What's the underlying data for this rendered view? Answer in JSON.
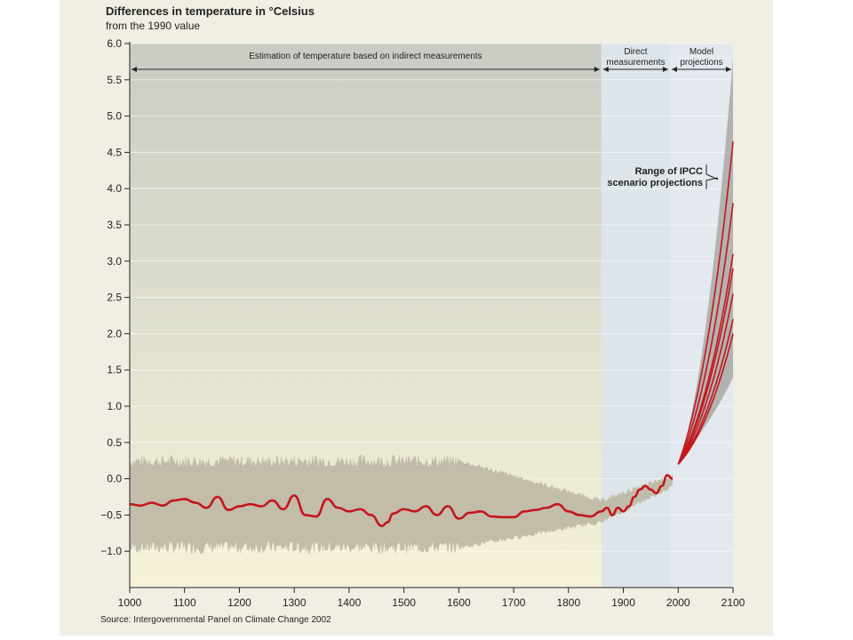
{
  "chart_data": {
    "type": "line",
    "title": "Differences in temperature in °Celsius",
    "subtitle": "from the 1990 value",
    "source": "Source: Intergovernmental Panel on Climate Change 2002",
    "xlim": [
      1000,
      2100
    ],
    "ylim": [
      -1.5,
      6.0
    ],
    "x_ticks": [
      "1000",
      "1100",
      "1200",
      "1300",
      "1400",
      "1500",
      "1600",
      "1700",
      "1800",
      "1900",
      "2000",
      "2100"
    ],
    "y_ticks": [
      "6.0",
      "5.5",
      "5.0",
      "4.5",
      "4.0",
      "3.5",
      "3.0",
      "2.5",
      "2.0",
      "1.5",
      "1.0",
      "0.5",
      "0.0",
      "−0.5",
      "−1.0"
    ],
    "regions": [
      {
        "label_lines": [
          "Estimation of temperature based on indirect measurements"
        ],
        "x_start": 1000,
        "x_end": 1860
      },
      {
        "label_lines": [
          "Direct",
          "measurements"
        ],
        "x_start": 1860,
        "x_end": 1985
      },
      {
        "label_lines": [
          "Model",
          "projections"
        ],
        "x_start": 1985,
        "x_end": 2100
      }
    ],
    "annotation_lines": [
      "Range of IPCC",
      "scenario projections"
    ],
    "series": [
      {
        "role": "observed-smoothed",
        "x": [
          1000,
          1020,
          1040,
          1060,
          1080,
          1100,
          1120,
          1140,
          1160,
          1180,
          1200,
          1220,
          1240,
          1260,
          1280,
          1300,
          1320,
          1340,
          1360,
          1380,
          1400,
          1420,
          1440,
          1460,
          1470,
          1480,
          1500,
          1520,
          1540,
          1560,
          1580,
          1600,
          1620,
          1640,
          1660,
          1680,
          1700,
          1720,
          1740,
          1760,
          1780,
          1800,
          1820,
          1840,
          1860,
          1870,
          1880,
          1890,
          1900,
          1910,
          1920,
          1930,
          1940,
          1950,
          1960,
          1970,
          1980,
          1990
        ],
        "values": [
          -0.35,
          -0.37,
          -0.33,
          -0.37,
          -0.3,
          -0.28,
          -0.33,
          -0.4,
          -0.25,
          -0.43,
          -0.38,
          -0.35,
          -0.38,
          -0.3,
          -0.42,
          -0.23,
          -0.5,
          -0.52,
          -0.28,
          -0.4,
          -0.45,
          -0.42,
          -0.5,
          -0.65,
          -0.6,
          -0.48,
          -0.42,
          -0.45,
          -0.38,
          -0.5,
          -0.38,
          -0.55,
          -0.47,
          -0.45,
          -0.52,
          -0.53,
          -0.53,
          -0.45,
          -0.43,
          -0.4,
          -0.35,
          -0.45,
          -0.5,
          -0.52,
          -0.45,
          -0.4,
          -0.5,
          -0.4,
          -0.45,
          -0.38,
          -0.25,
          -0.15,
          -0.1,
          -0.15,
          -0.2,
          -0.1,
          0.05,
          0.0
        ]
      },
      {
        "role": "projection",
        "x": [
          2000,
          2100
        ],
        "values": [
          0.2,
          4.65
        ]
      },
      {
        "role": "projection",
        "x": [
          2000,
          2100
        ],
        "values": [
          0.2,
          3.8
        ]
      },
      {
        "role": "projection",
        "x": [
          2000,
          2100
        ],
        "values": [
          0.2,
          3.1
        ]
      },
      {
        "role": "projection",
        "x": [
          2000,
          2100
        ],
        "values": [
          0.2,
          2.9
        ]
      },
      {
        "role": "projection",
        "x": [
          2000,
          2100
        ],
        "values": [
          0.2,
          2.55
        ]
      },
      {
        "role": "projection",
        "x": [
          2000,
          2100
        ],
        "values": [
          0.2,
          2.2
        ]
      },
      {
        "role": "projection",
        "x": [
          2000,
          2100
        ],
        "values": [
          0.2,
          2.0
        ]
      }
    ],
    "projection_range": {
      "x": [
        2000,
        2100
      ],
      "low": [
        0.2,
        1.4
      ],
      "high": [
        0.2,
        5.8
      ]
    },
    "uncertainty_band": {
      "x": [
        1000,
        1600,
        1860,
        1990
      ],
      "low": [
        -0.95,
        -0.95,
        -0.6,
        -0.1
      ],
      "high": [
        0.25,
        0.25,
        -0.3,
        0.05
      ]
    },
    "colors": {
      "projection_range": "#a9a9a6",
      "uncertainty_band": "#bdb7a4",
      "red_line": "#c4161c",
      "bg_indirect_top": "#c9ccc4",
      "bg_indirect_bottom": "#f6f2d8",
      "bg_direct": "#dde5ea",
      "bg_model": "#e3e9ef",
      "panel": "#f1efe4"
    }
  }
}
